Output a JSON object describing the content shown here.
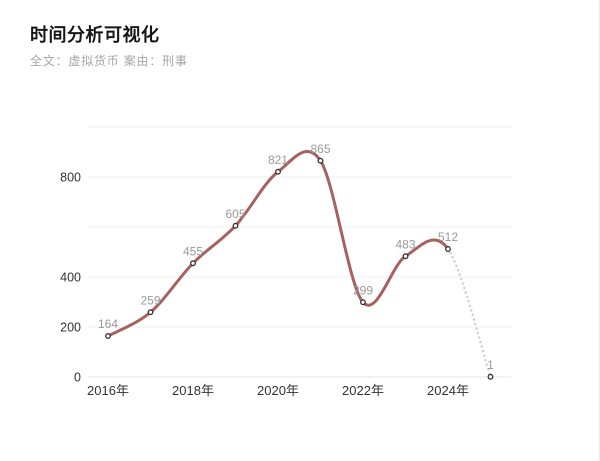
{
  "header": {
    "title": "时间分析可视化",
    "subtitle": "全文：虚拟货币 案由：刑事"
  },
  "chart_data": {
    "type": "line",
    "title": "时间分析可视化",
    "subtitle": "全文：虚拟货币 案由：刑事",
    "x": [
      2016,
      2017,
      2018,
      2019,
      2020,
      2021,
      2022,
      2023,
      2024,
      2025
    ],
    "values": [
      164,
      259,
      455,
      605,
      821,
      865,
      299,
      483,
      512,
      1
    ],
    "point_labels": [
      "164",
      "259",
      "455",
      "605",
      "821",
      "865",
      "299",
      "483",
      "512",
      "1"
    ],
    "x_ticks": [
      2016,
      2018,
      2020,
      2022,
      2024
    ],
    "x_tick_labels": [
      "2016年",
      "2018年",
      "2020年",
      "2022年",
      "2024年"
    ],
    "y_ticks": [
      0,
      200,
      400,
      800
    ],
    "y_gridlines": [
      0,
      200,
      400,
      600,
      800,
      1000
    ],
    "ylim": [
      0,
      1000
    ],
    "xlabel": "",
    "ylabel": "",
    "grid": true,
    "legend": null,
    "dashed_tail_from_index": 8,
    "style": {
      "line_color": "#a86161",
      "dotted_tail_color": "#d6c9c9",
      "marker_fill": "#ffffff",
      "marker_stroke": "#3c2e2e",
      "data_label_color": "#999999",
      "axis_label_color": "#333333",
      "gridline_color": "#efefef",
      "baseline_color": "#e4e4e4"
    }
  }
}
